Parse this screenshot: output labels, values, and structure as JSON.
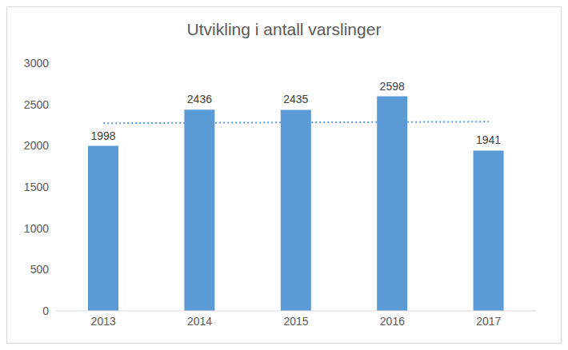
{
  "chart_data": {
    "type": "bar",
    "title": "Utvikling i antall varslinger",
    "categories": [
      "2013",
      "2014",
      "2015",
      "2016",
      "2017"
    ],
    "series": [
      {
        "type": "bar",
        "color": "#5b9bd5",
        "data_labels": true,
        "values": [
          1998,
          2436,
          2435,
          2598,
          1941
        ]
      },
      {
        "type": "line",
        "color": "#5b9bd5",
        "line_style": "dotted",
        "values": [
          2272,
          2277,
          2282,
          2286,
          2291
        ]
      }
    ],
    "ylim": [
      0,
      3000
    ],
    "yticks": [
      0,
      500,
      1000,
      1500,
      2000,
      2500,
      3000
    ],
    "grid": false
  }
}
